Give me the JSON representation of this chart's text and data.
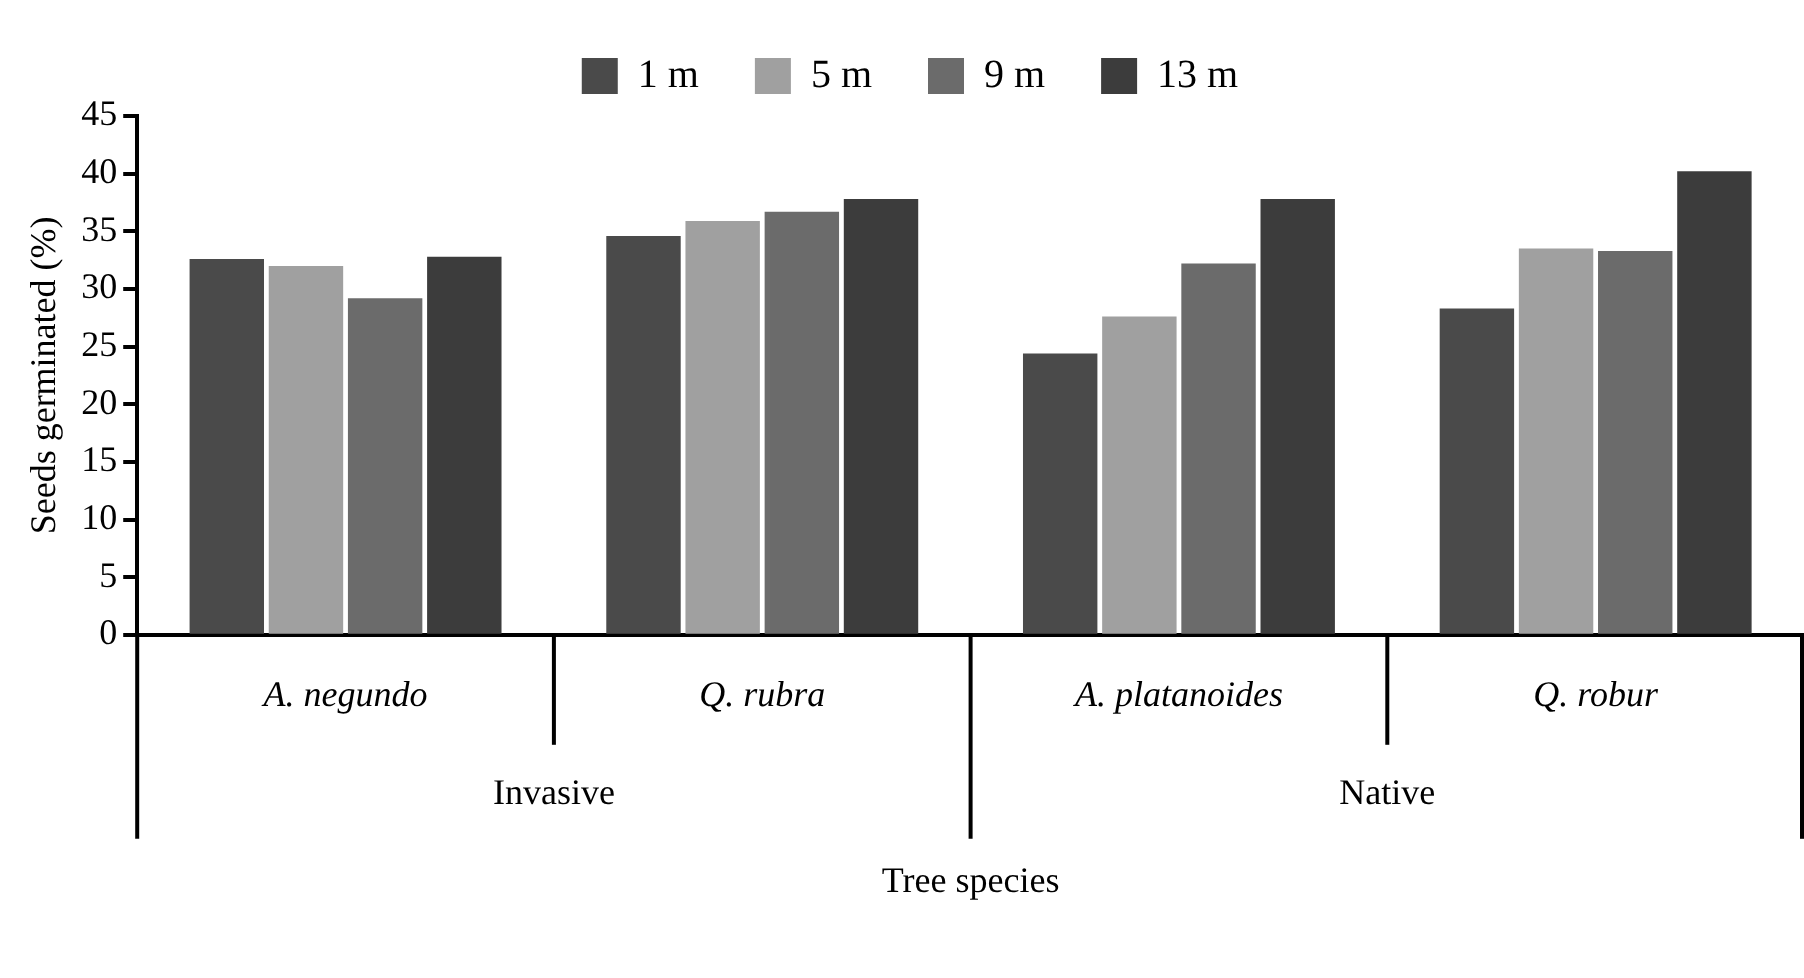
{
  "chart_data": {
    "type": "bar",
    "xlabel": "Tree species",
    "ylabel": "Seeds germinated (%)",
    "categories": [
      "A. negundo",
      "Q. rubra",
      "A. platanoides",
      "Q. robur"
    ],
    "series": [
      {
        "name": "1 m",
        "color": "#4a4a4a",
        "values": [
          32.6,
          34.6,
          24.4,
          28.3
        ]
      },
      {
        "name": "5 m",
        "color": "#a0a0a0",
        "values": [
          32.0,
          35.9,
          27.6,
          33.5
        ]
      },
      {
        "name": "9 m",
        "color": "#6b6b6b",
        "values": [
          29.2,
          36.7,
          32.2,
          33.3
        ]
      },
      {
        "name": "13 m",
        "color": "#3c3c3c",
        "values": [
          32.8,
          37.8,
          37.8,
          40.2
        ]
      }
    ],
    "ylim": [
      0,
      45
    ],
    "yticks": [
      0,
      5,
      10,
      15,
      20,
      25,
      30,
      35,
      40,
      45
    ],
    "grid": false,
    "legend": "top",
    "annotations": [
      "Invasive",
      "Native"
    ]
  }
}
